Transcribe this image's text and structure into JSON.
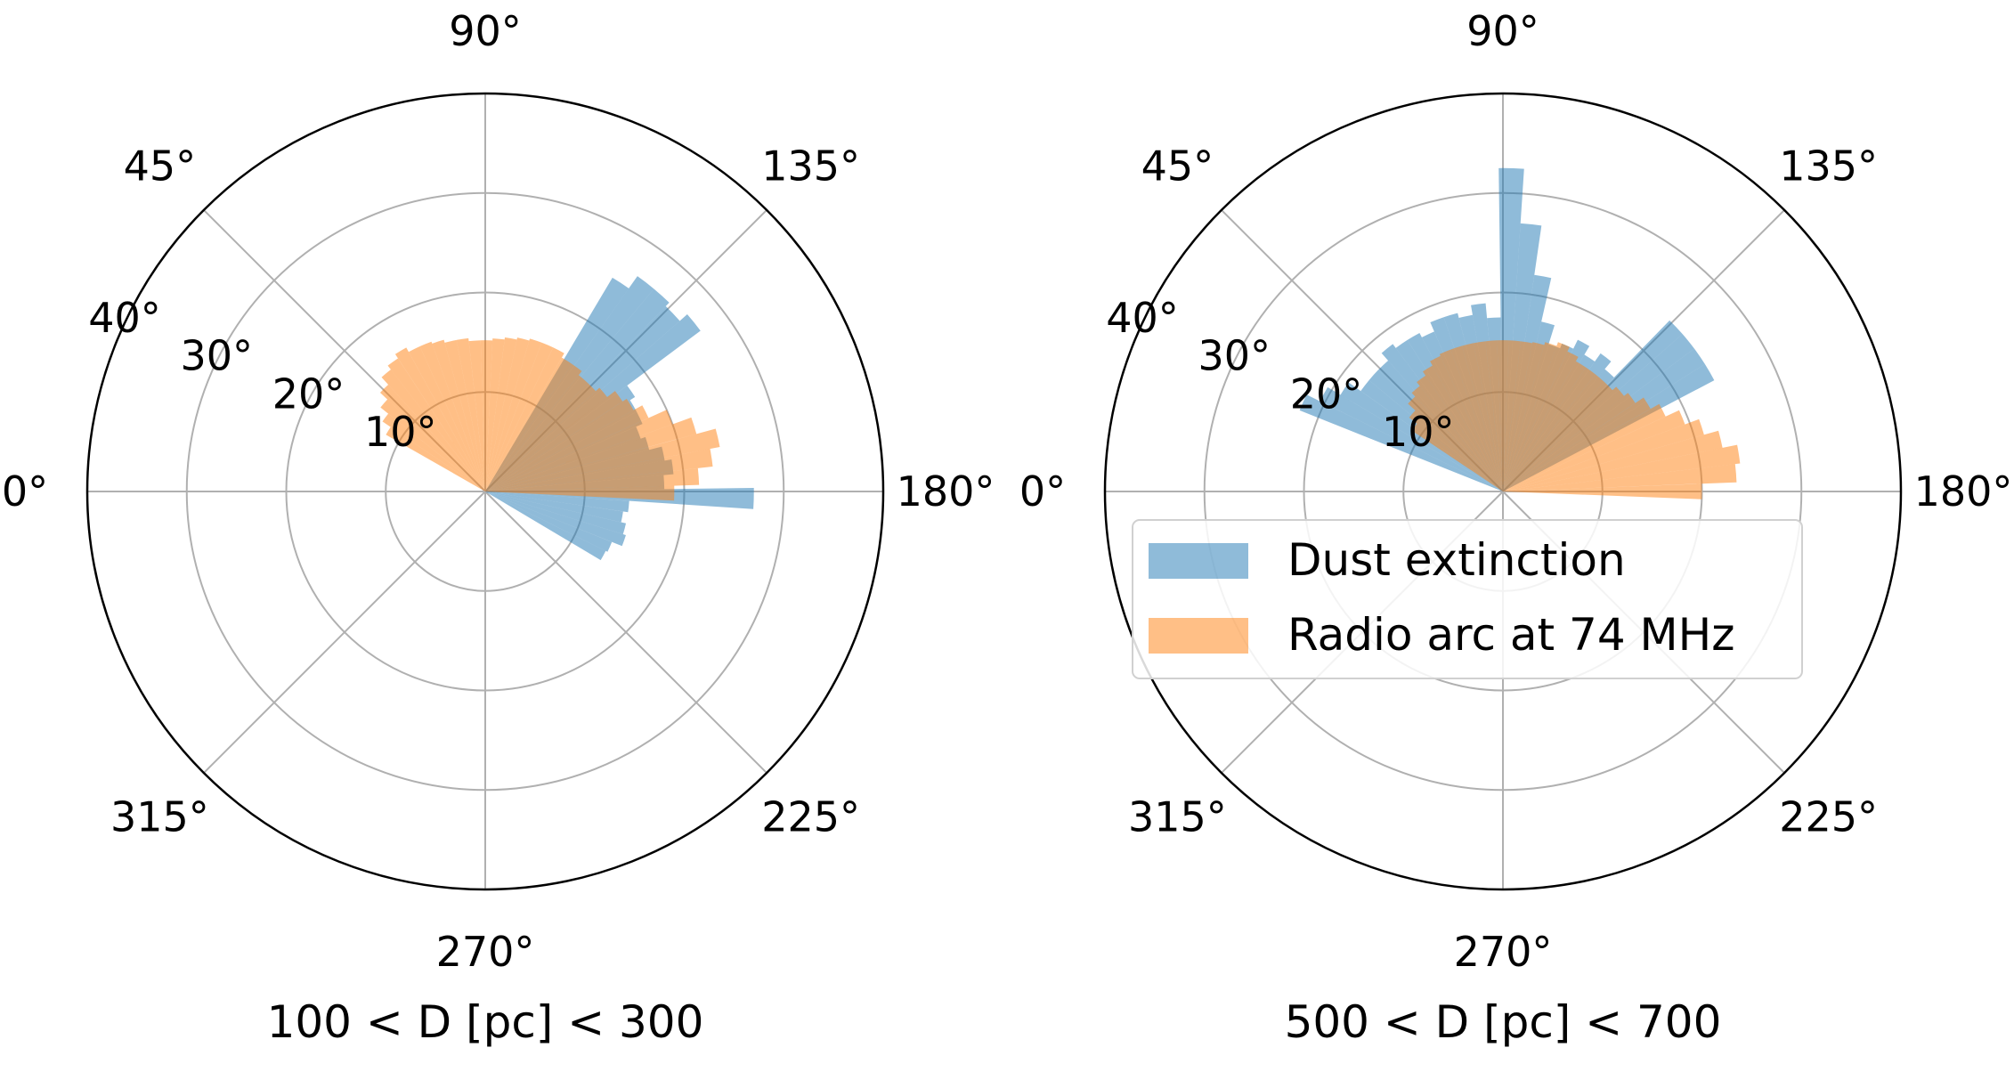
{
  "chart_data": [
    {
      "type": "polar-bar",
      "title": "",
      "xlabel": "100 < D [pc] < 300",
      "theta_ticks": [
        "0°",
        "45°",
        "90°",
        "135°",
        "180°",
        "225°",
        "270°",
        "315°"
      ],
      "r_ticks": [
        "10°",
        "20°",
        "30°",
        "40°"
      ],
      "r_tick_values": [
        10,
        20,
        30,
        40
      ],
      "rlim": [
        0,
        40
      ],
      "theta_direction": "counterclockwise from left (0° at left, 90° at top, 180° at right)",
      "bar_width_deg": 4.5,
      "grid": true,
      "legend": false,
      "series": [
        {
          "name": "Dust extinction",
          "color": "#1f77b4",
          "angles": [
            123,
            127.5,
            132,
            136.5,
            141,
            145.5,
            150,
            154.5,
            159,
            163.5,
            168,
            172.5,
            177,
            181.5,
            186,
            190.5,
            195,
            199.5,
            204,
            208.5
          ],
          "values": [
            25,
            26.5,
            26.5,
            26,
            27,
            17.8,
            17.2,
            17.2,
            16.5,
            17,
            18.3,
            19,
            18,
            27,
            14.5,
            14,
            14.5,
            14.8,
            13.7,
            13.5
          ]
        },
        {
          "name": "Radio arc at 74 MHz",
          "color": "#ff7f0e",
          "angles": [
            32,
            36.5,
            41,
            45.5,
            50,
            54.5,
            59,
            63.5,
            68,
            72.5,
            77,
            81.5,
            86,
            90.5,
            95,
            99.5,
            104,
            108.5,
            113,
            117.5,
            122,
            126.5,
            131,
            135.5,
            140,
            144.5,
            149,
            153.5,
            158,
            162.5,
            167,
            171.5,
            176,
            180.5
          ],
          "values": [
            11.5,
            12.5,
            13.5,
            14.5,
            15.5,
            16,
            16.5,
            16,
            16,
            15.8,
            15.5,
            15.5,
            15.2,
            15.2,
            15.4,
            15.6,
            15.8,
            16,
            16,
            16,
            15.5,
            15.5,
            15,
            15,
            15.5,
            16.5,
            17,
            18,
            20,
            22,
            24,
            23,
            21.5,
            19
          ]
        }
      ]
    },
    {
      "type": "polar-bar",
      "title": "",
      "xlabel": "500 < D [pc] < 700",
      "theta_ticks": [
        "0°",
        "45°",
        "90°",
        "135°",
        "180°",
        "225°",
        "270°",
        "315°"
      ],
      "r_ticks": [
        "10°",
        "20°",
        "30°",
        "40°"
      ],
      "r_tick_values": [
        10,
        20,
        30,
        40
      ],
      "rlim": [
        0,
        40
      ],
      "theta_direction": "counterclockwise from left (0° at left, 90° at top, 180° at right)",
      "bar_width_deg": 4.5,
      "grid": true,
      "legend": true,
      "legend_loc": "lower-right",
      "series": [
        {
          "name": "Dust extinction",
          "color": "#1f77b4",
          "angles": [
            24,
            28.5,
            33,
            37.5,
            42,
            46.5,
            51,
            55.5,
            60,
            64.5,
            69,
            73.5,
            78,
            82.5,
            87,
            91.5,
            96,
            100.5,
            105,
            109.5,
            114,
            118.5,
            123,
            127.5,
            132,
            136.5,
            141,
            145.5,
            150
          ],
          "values": [
            22,
            20.5,
            19,
            17.5,
            17.5,
            17.5,
            18.5,
            18,
            18,
            17.5,
            18.5,
            18.5,
            18,
            19,
            17.5,
            32.5,
            27,
            22,
            17.5,
            15.5,
            16,
            17,
            16,
            17,
            16,
            24,
            24,
            24,
            24
          ]
        },
        {
          "name": "Radio arc at 74 MHz",
          "color": "#ff7f0e",
          "angles": [
            36,
            40.5,
            45,
            49.5,
            54,
            58.5,
            63,
            67.5,
            72,
            76.5,
            81,
            85.5,
            90,
            94.5,
            99,
            103.5,
            108,
            112.5,
            117,
            121.5,
            126,
            130.5,
            135,
            139.5,
            144,
            148.5,
            153,
            157.5,
            162,
            166.5,
            171,
            175.5,
            180
          ],
          "values": [
            11,
            12,
            13,
            13.5,
            14,
            14.5,
            15,
            15.2,
            15.2,
            15.2,
            15.2,
            15.2,
            15.2,
            15.2,
            15.2,
            15.3,
            15.6,
            16,
            15.5,
            15,
            15,
            15,
            15,
            15.5,
            16,
            17,
            18,
            19.5,
            21,
            22.5,
            24,
            23.5,
            20
          ]
        }
      ]
    }
  ]
}
